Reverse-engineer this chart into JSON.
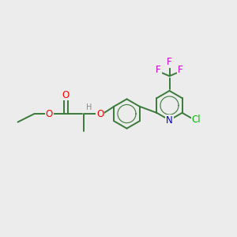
{
  "bg_color": "#ECECEC",
  "bond_color": "#3a7a3a",
  "bond_width": 1.4,
  "atom_colors": {
    "O": "#ff0000",
    "N": "#0000cc",
    "F": "#cc00cc",
    "Cl": "#00bb00",
    "H": "#888888",
    "C": "#3a7a3a"
  },
  "font_size": 8.5,
  "fig_size": [
    3.0,
    3.0
  ],
  "dpi": 100,
  "xlim": [
    0,
    10
  ],
  "ylim": [
    0,
    10
  ]
}
